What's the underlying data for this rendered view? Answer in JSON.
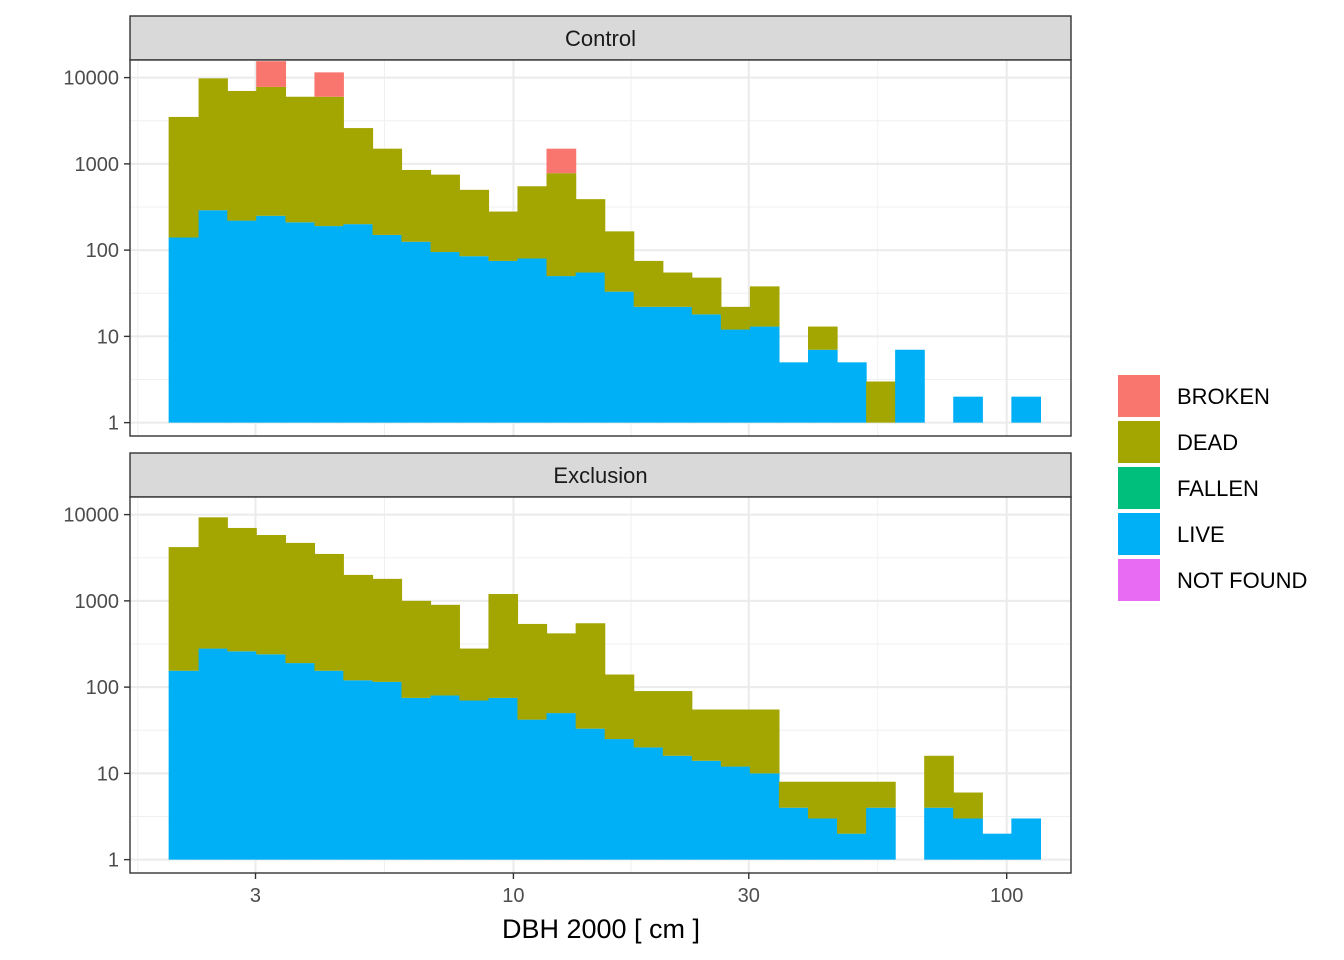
{
  "chart_data": {
    "type": "bar",
    "subtype": "stacked histogram, faceted",
    "xlabel": "DBH 2000 [ cm ]",
    "xscale": "log10",
    "yscale": "log10",
    "xlim": [
      1.67,
      135
    ],
    "ylim": [
      0.7,
      16000
    ],
    "xticks": [
      {
        "value": 3,
        "label": "3"
      },
      {
        "value": 10,
        "label": "10"
      },
      {
        "value": 30,
        "label": "30"
      },
      {
        "value": 100,
        "label": "100"
      }
    ],
    "yticks": [
      {
        "value": 1,
        "label": "1"
      },
      {
        "value": 10,
        "label": "10"
      },
      {
        "value": 100,
        "label": "100"
      },
      {
        "value": 1000,
        "label": "1000"
      },
      {
        "value": 10000,
        "label": "10000"
      }
    ],
    "grid": true,
    "legend_position": "right",
    "legend": [
      {
        "name": "BROKEN",
        "color": "#F8766D"
      },
      {
        "name": "DEAD",
        "color": "#A3A500"
      },
      {
        "name": "FALLEN",
        "color": "#00BF7D"
      },
      {
        "name": "LIVE",
        "color": "#00B0F6"
      },
      {
        "name": "NOT FOUND",
        "color": "#E76BF3"
      }
    ],
    "bin_edges": [
      2.0,
      2.3,
      2.63,
      3.01,
      3.45,
      3.95,
      4.52,
      5.18,
      5.93,
      6.79,
      7.77,
      8.9,
      10.19,
      11.67,
      13.37,
      15.31,
      17.53,
      20.08,
      22.99,
      26.33,
      30.15,
      34.53,
      39.55,
      45.29,
      51.87,
      59.4,
      68.03,
      77.91,
      89.23,
      102.19,
      117.03
    ],
    "facets": [
      {
        "name": "Control",
        "live": [
          140,
          290,
          220,
          250,
          210,
          190,
          200,
          150,
          125,
          95,
          85,
          75,
          80,
          50,
          55,
          33,
          22,
          22,
          18,
          12,
          13,
          5,
          7,
          5,
          0,
          7,
          0,
          2,
          0,
          2
        ],
        "dead_cum": [
          3500,
          9800,
          7000,
          7800,
          6000,
          6000,
          2600,
          1500,
          850,
          750,
          500,
          280,
          550,
          780,
          390,
          165,
          75,
          55,
          48,
          22,
          38,
          5,
          13,
          5,
          3,
          7,
          0,
          2,
          0,
          2
        ],
        "broken_cum": [
          3500,
          9800,
          7000,
          15500,
          6000,
          11500,
          2600,
          1500,
          850,
          750,
          500,
          280,
          550,
          1500,
          390,
          165,
          75,
          55,
          48,
          22,
          38,
          5,
          13,
          5,
          3,
          7,
          0,
          2,
          0,
          2
        ]
      },
      {
        "name": "Exclusion",
        "live": [
          155,
          280,
          260,
          240,
          190,
          155,
          120,
          115,
          75,
          80,
          70,
          75,
          42,
          50,
          33,
          25,
          20,
          16,
          14,
          12,
          10,
          4,
          3,
          2,
          4,
          0,
          4,
          3,
          2,
          3
        ],
        "dead_cum": [
          4200,
          9300,
          7000,
          5800,
          4700,
          3500,
          2000,
          1800,
          1000,
          900,
          280,
          1200,
          540,
          420,
          550,
          140,
          90,
          90,
          55,
          55,
          55,
          8,
          8,
          8,
          8,
          0,
          16,
          6,
          2,
          3
        ],
        "broken_cum": [
          4200,
          9300,
          7000,
          5800,
          4700,
          3500,
          2000,
          1800,
          1000,
          900,
          280,
          1200,
          540,
          420,
          550,
          140,
          90,
          90,
          55,
          55,
          55,
          8,
          8,
          8,
          8,
          0,
          16,
          6,
          2,
          3
        ]
      }
    ]
  }
}
